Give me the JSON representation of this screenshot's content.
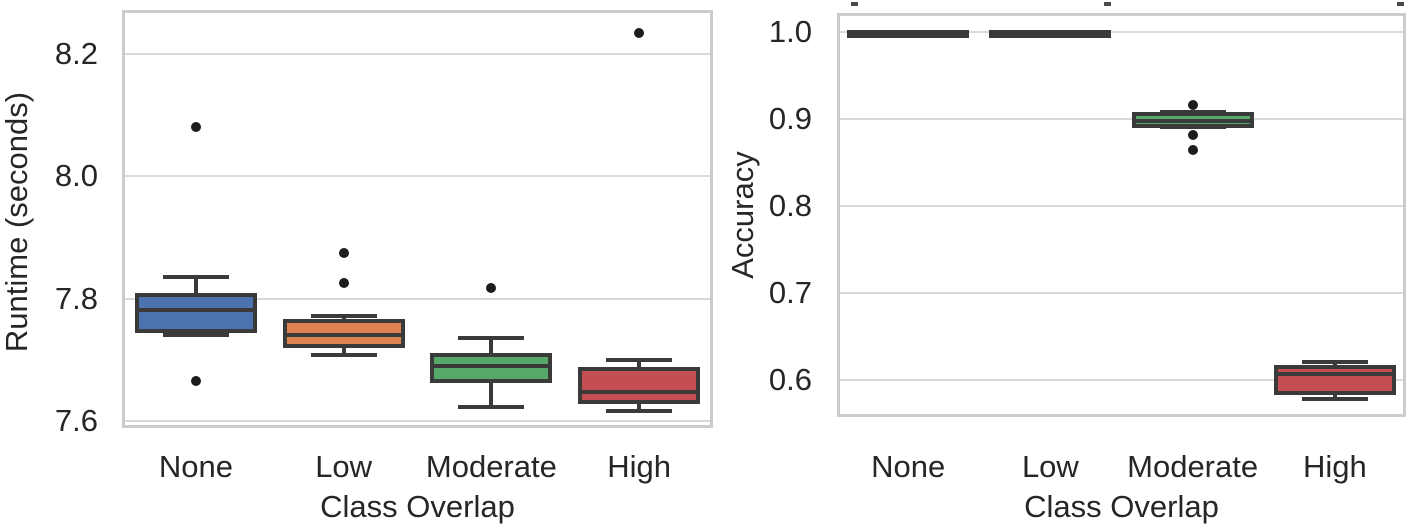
{
  "colors": {
    "box_line": "#3A3A3A",
    "grid": "#D9D9D9",
    "spine": "#CCCCCC",
    "text": "#262626",
    "flier": "#1C1C1C",
    "background": "#FFFFFF",
    "palette": {
      "None": "#4C72B0",
      "Low": "#DD8452",
      "Moderate": "#55A868",
      "High": "#C44E52"
    }
  },
  "chart_data": [
    {
      "type": "box",
      "title": "",
      "xlabel": "Class Overlap",
      "ylabel": "Runtime (seconds)",
      "categories": [
        "None",
        "Low",
        "Moderate",
        "High"
      ],
      "ylim": [
        7.589,
        8.271
      ],
      "yticks": [
        8.2,
        8.0,
        7.8,
        7.6
      ],
      "ytick_labels": [
        "8.2",
        "8.0",
        "7.8",
        "7.6"
      ],
      "grid": true,
      "legend": false,
      "series": [
        {
          "category": "None",
          "color": "#4C72B0",
          "whislo": 7.74,
          "q1": 7.748,
          "med": 7.781,
          "q3": 7.806,
          "whishi": 7.835,
          "fliers": [
            8.08,
            7.665
          ]
        },
        {
          "category": "Low",
          "color": "#DD8452",
          "whislo": 7.708,
          "q1": 7.723,
          "med": 7.741,
          "q3": 7.764,
          "whishi": 7.772,
          "fliers": [
            7.875,
            7.826
          ]
        },
        {
          "category": "Moderate",
          "color": "#55A868",
          "whislo": 7.624,
          "q1": 7.665,
          "med": 7.69,
          "q3": 7.708,
          "whishi": 7.736,
          "fliers": [
            7.818
          ]
        },
        {
          "category": "High",
          "color": "#C44E52",
          "whislo": 7.616,
          "q1": 7.632,
          "med": 7.648,
          "q3": 7.686,
          "whishi": 7.7,
          "fliers": [
            8.234
          ]
        }
      ]
    },
    {
      "type": "box",
      "title": "",
      "xlabel": "Class Overlap",
      "ylabel": "Accuracy",
      "categories": [
        "None",
        "Low",
        "Moderate",
        "High"
      ],
      "ylim": [
        0.558,
        1.022
      ],
      "yticks": [
        1.0,
        0.9,
        0.8,
        0.7,
        0.6
      ],
      "ytick_labels": [
        "1.0",
        "0.9",
        "0.8",
        "0.7",
        "0.6"
      ],
      "grid": true,
      "legend": false,
      "series": [
        {
          "category": "None",
          "color": "#4C72B0",
          "whislo": 0.9995,
          "q1": 0.9995,
          "med": 1.0,
          "q3": 1.0,
          "whishi": 1.0,
          "fliers": []
        },
        {
          "category": "Low",
          "color": "#DD8452",
          "whislo": 0.9995,
          "q1": 0.9995,
          "med": 1.0,
          "q3": 1.0,
          "whishi": 1.0,
          "fliers": []
        },
        {
          "category": "Moderate",
          "color": "#55A868",
          "whislo": 0.891,
          "q1": 0.8925,
          "med": 0.898,
          "q3": 0.9055,
          "whishi": 0.908,
          "fliers": [
            0.916,
            0.882,
            0.865
          ]
        },
        {
          "category": "High",
          "color": "#C44E52",
          "whislo": 0.579,
          "q1": 0.586,
          "med": 0.607,
          "q3": 0.615,
          "whishi": 0.621,
          "fliers": []
        }
      ]
    }
  ]
}
